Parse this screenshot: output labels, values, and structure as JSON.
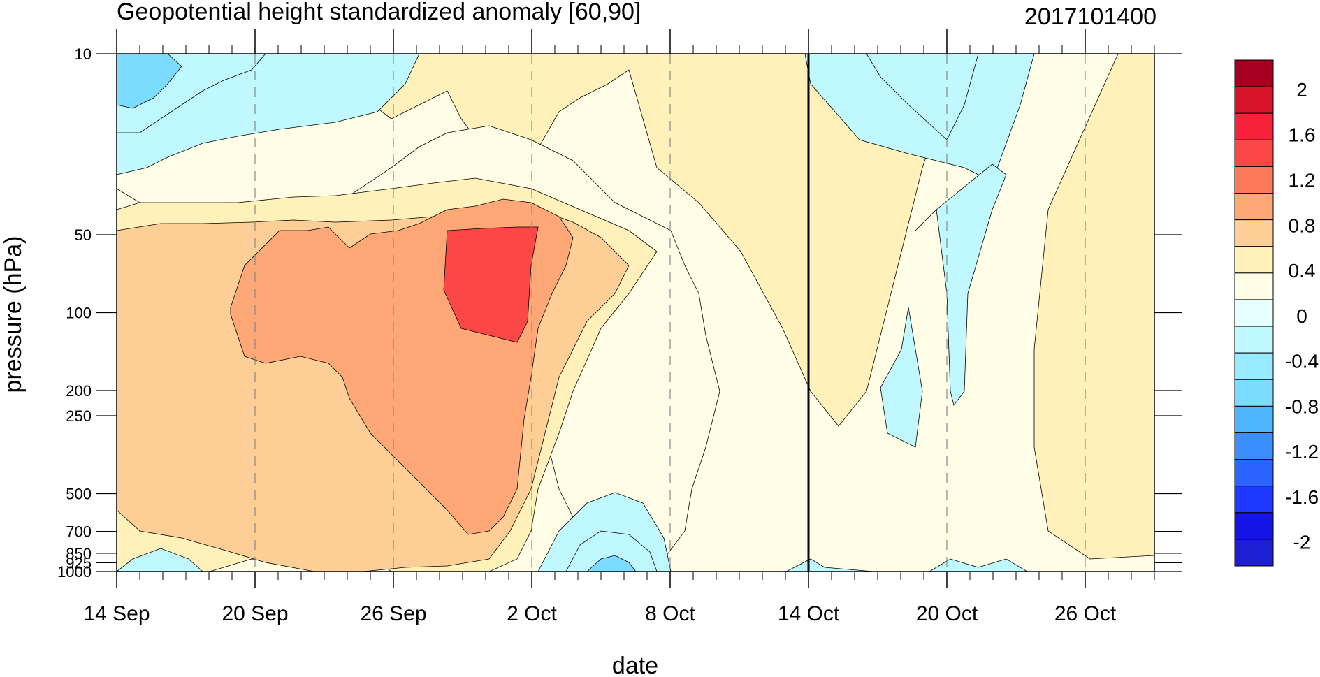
{
  "chart_data": {
    "type": "heatmap",
    "title": "Geopotential height standardized anomaly [60,90]",
    "right_title": "2017101400",
    "xlabel": "date",
    "ylabel": "pressure (hPa)",
    "x_tick_labels": [
      "14 Sep",
      "20 Sep",
      "26 Sep",
      "2 Oct",
      "8 Oct",
      "14 Oct",
      "20 Oct",
      "26 Oct"
    ],
    "x_tick_day_offsets": [
      0,
      6,
      12,
      18,
      24,
      30,
      36,
      42
    ],
    "x_range_days": [
      0,
      45
    ],
    "analysis_date": "14 Oct",
    "y_scale": "log",
    "y_reversed": true,
    "y_range_hpa": [
      1000,
      10
    ],
    "y_tick_values": [
      10,
      50,
      100,
      200,
      250,
      500,
      700,
      850,
      925,
      1000
    ],
    "y_tick_labels": [
      "10",
      "50",
      "100",
      "200",
      "250",
      "500",
      "700",
      "850",
      "925",
      "1000"
    ],
    "colorbar": {
      "labels": [
        "2",
        "1.6",
        "1.2",
        "0.8",
        "0.4",
        "0",
        "-0.4",
        "-0.8",
        "-1.2",
        "-1.6",
        "-2"
      ],
      "colors": [
        "#a50021",
        "#d7142a",
        "#f5223a",
        "#fc4747",
        "#fd7a5a",
        "#fea878",
        "#fdcf96",
        "#fff1b9",
        "#fffde5",
        "#e6ffff",
        "#c0f8ff",
        "#98eaff",
        "#7cdcff",
        "#4eb6ff",
        "#3c8dff",
        "#2c64ff",
        "#1e38ff",
        "#1414e6",
        "#1e1ed2"
      ]
    },
    "field_note": "standardized anomaly values contoured every 0.2; positive (orange) in Sep-early Oct lower/middle atmosphere, negative (blue) near top early Sep and mid-Oct"
  }
}
